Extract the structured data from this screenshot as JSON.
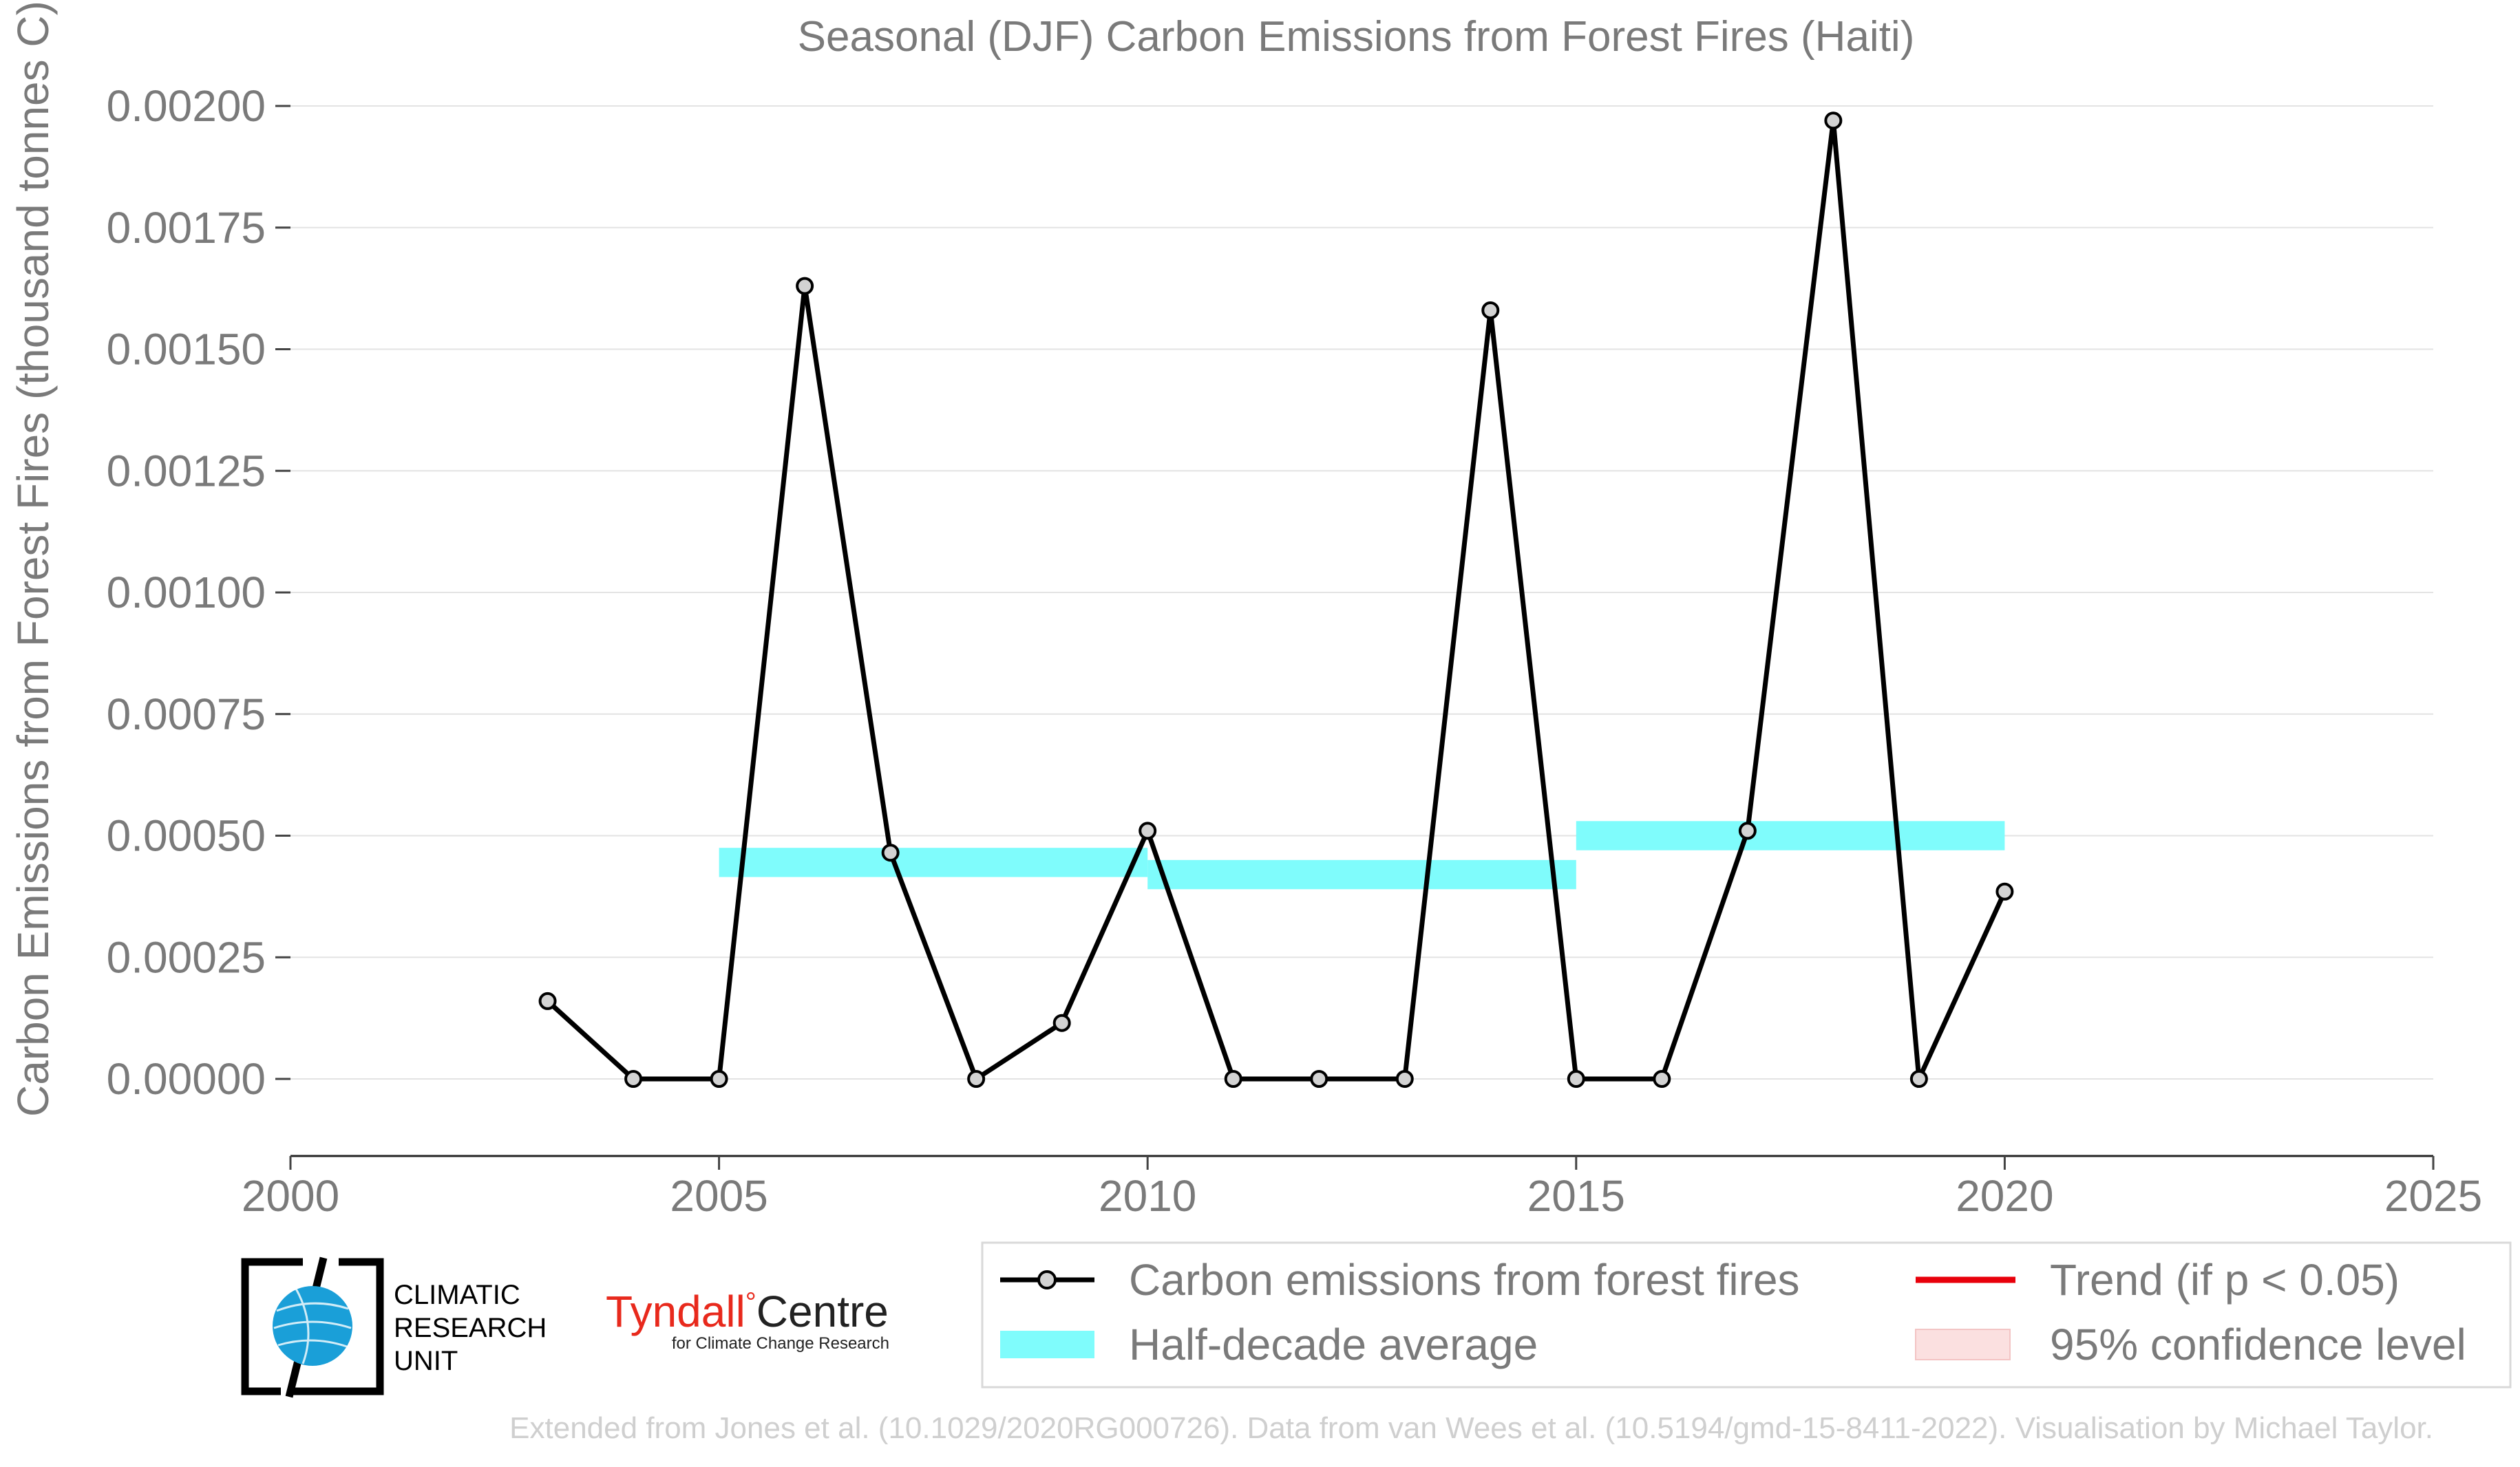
{
  "chart_data": {
    "type": "line",
    "title": "Seasonal (DJF) Carbon Emissions from Forest Fires (Haiti)",
    "xlabel": "",
    "ylabel": "Carbon Emissions from Forest Fires (thousand tonnes C)",
    "xlim": [
      2000,
      2025
    ],
    "ylim": [
      -0.00015,
      0.00203
    ],
    "x_ticks": [
      2000,
      2005,
      2010,
      2015,
      2020,
      2025
    ],
    "y_ticks": [
      0.0,
      0.00025,
      0.0005,
      0.00075,
      0.001,
      0.00125,
      0.0015,
      0.00175,
      0.002
    ],
    "y_tick_labels": [
      "0.00000",
      "0.00025",
      "0.00050",
      "0.00075",
      "0.00100",
      "0.00125",
      "0.00150",
      "0.00175",
      "0.00200"
    ],
    "grid": "horizontal",
    "series": [
      {
        "name": "Carbon emissions from forest fires",
        "color": "#000000",
        "x": [
          2003,
          2004,
          2005,
          2006,
          2007,
          2008,
          2009,
          2010,
          2011,
          2012,
          2013,
          2014,
          2015,
          2016,
          2017,
          2018,
          2019,
          2020
        ],
        "y": [
          0.00016,
          0.0,
          0.0,
          0.00163,
          0.000465,
          0.0,
          0.000115,
          0.00051,
          0.0,
          0.0,
          0.0,
          0.00158,
          0.0,
          0.0,
          0.00051,
          0.00197,
          0.0,
          0.000385
        ]
      }
    ],
    "half_decade_average": {
      "name": "Half-decade average",
      "color": "#7ffcfc",
      "segments": [
        {
          "x_start": 2005,
          "x_end": 2010,
          "y": 0.000445
        },
        {
          "x_start": 2010,
          "x_end": 2015,
          "y": 0.00042
        },
        {
          "x_start": 2015,
          "x_end": 2020,
          "y": 0.0005
        }
      ]
    },
    "legend": {
      "placement": "bottom-right",
      "items": [
        {
          "label": "Carbon emissions from forest fires",
          "kind": "line-marker",
          "color": "#000000"
        },
        {
          "label": "Trend (if p < 0.05)",
          "kind": "line",
          "color": "#e8000b"
        },
        {
          "label": "Half-decade average",
          "kind": "band",
          "color": "#7ffcfc"
        },
        {
          "label": "95% confidence level",
          "kind": "band",
          "color": "#fbe0e0"
        }
      ]
    }
  },
  "logos": {
    "cru": {
      "lines": [
        "CLIMATIC",
        "RESEARCH",
        "UNIT"
      ],
      "icon": "globe-icon"
    },
    "tyndall": {
      "name": "Tyndall",
      "degree": "°",
      "centre": "Centre",
      "subtitle": "for Climate Change Research",
      "color": "#e8291c"
    }
  },
  "footer": "Extended from Jones et al. (10.1029/2020RG000726). Data from van Wees et al. (10.5194/gmd-15-8411-2022). Visualisation by Michael Taylor."
}
